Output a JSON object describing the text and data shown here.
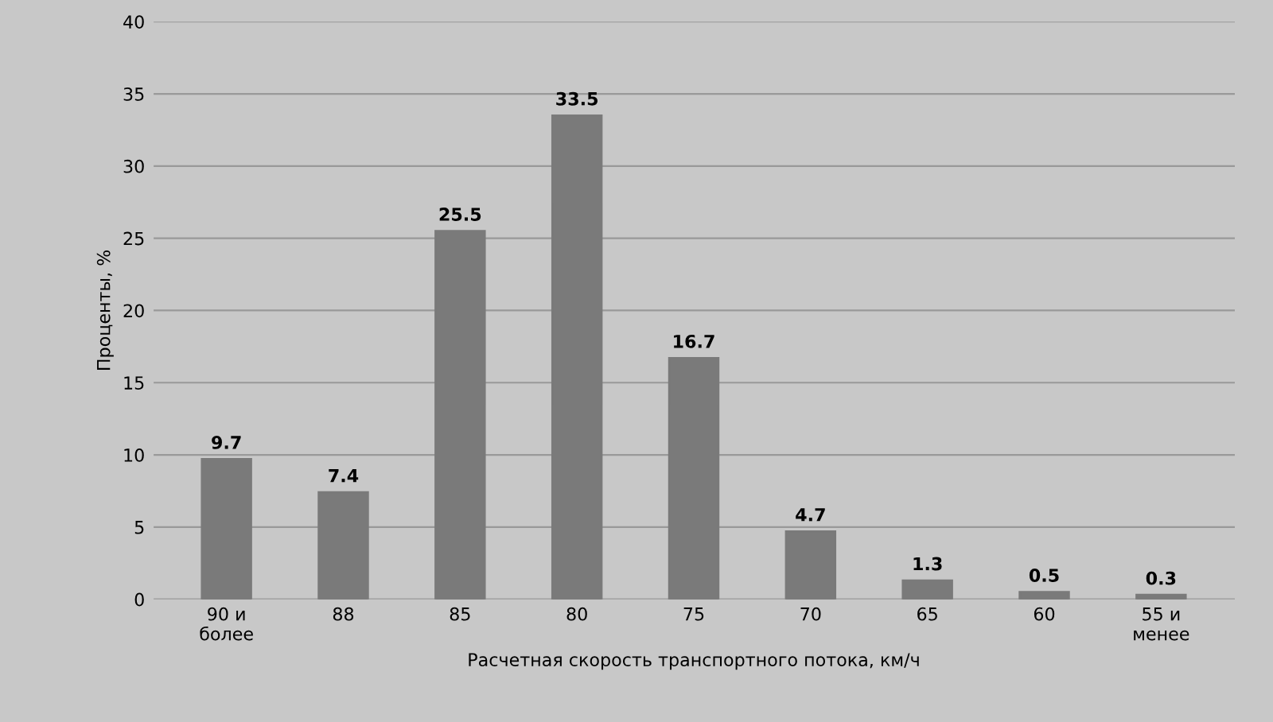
{
  "chart_data": {
    "type": "bar",
    "ylabel": "Проценты, %",
    "xlabel": "Расчетная скорость транспортного потока, км/ч",
    "categories": [
      "90 и\nболее",
      "88",
      "85",
      "80",
      "75",
      "70",
      "65",
      "60",
      "55 и\nменее"
    ],
    "values": [
      9.7,
      7.4,
      25.5,
      33.5,
      16.7,
      4.7,
      1.3,
      0.5,
      0.3
    ],
    "value_labels": [
      "9.7",
      "7.4",
      "25.5",
      "33.5",
      "16.7",
      "4.7",
      "1.3",
      "0.5",
      "0.3"
    ],
    "color": "#7a7a7a",
    "ylim": [
      0,
      40
    ],
    "yticks": [
      0,
      5,
      10,
      15,
      20,
      25,
      30,
      35,
      40
    ],
    "grid": "y"
  }
}
